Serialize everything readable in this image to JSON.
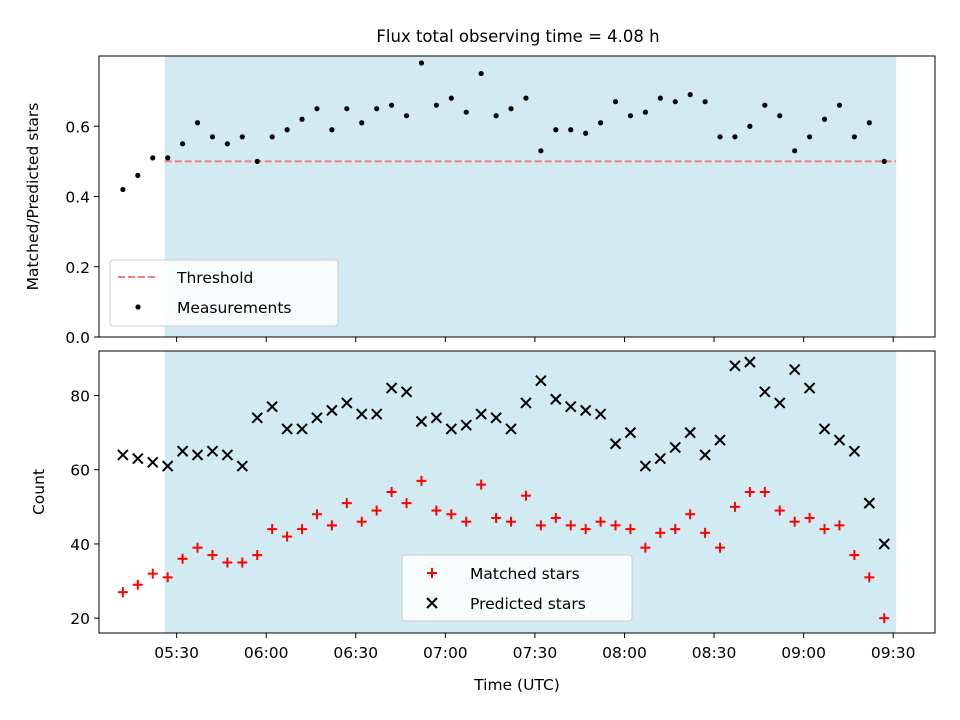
{
  "chart_data": [
    {
      "type": "scatter",
      "title": "Flux total observing time = 4.08 h",
      "xlabel": "",
      "ylabel": "Matched/Predicted stars",
      "ylim": [
        0,
        0.8
      ],
      "yticks": [
        0.0,
        0.2,
        0.4,
        0.6
      ],
      "ytick_labels": [
        "0.0",
        "0.2",
        "0.4",
        "0.6"
      ],
      "xlim_minutes_utc": [
        304,
        584
      ],
      "shaded_span_minutes_utc": [
        326,
        571
      ],
      "shade_color": "#add8e6",
      "threshold": {
        "name": "Threshold",
        "value": 0.5,
        "x_range_minutes_utc": [
          326,
          571
        ],
        "color": "#f08080",
        "style": "dashed"
      },
      "series": [
        {
          "name": "Measurements",
          "color": "#000000",
          "marker": "dot",
          "x": [
            "05:12",
            "05:17",
            "05:22",
            "05:27",
            "05:32",
            "05:37",
            "05:42",
            "05:47",
            "05:52",
            "05:57",
            "06:02",
            "06:07",
            "06:12",
            "06:17",
            "06:22",
            "06:27",
            "06:32",
            "06:37",
            "06:42",
            "06:47",
            "06:52",
            "06:57",
            "07:02",
            "07:07",
            "07:12",
            "07:17",
            "07:22",
            "07:27",
            "07:32",
            "07:37",
            "07:42",
            "07:47",
            "07:52",
            "07:57",
            "08:02",
            "08:07",
            "08:12",
            "08:17",
            "08:22",
            "08:27",
            "08:32",
            "08:37",
            "08:42",
            "08:47",
            "08:52",
            "08:57",
            "09:02",
            "09:07",
            "09:12",
            "09:17",
            "09:22",
            "09:27"
          ],
          "y": [
            0.42,
            0.46,
            0.51,
            0.51,
            0.55,
            0.61,
            0.57,
            0.55,
            0.57,
            0.5,
            0.57,
            0.59,
            0.62,
            0.65,
            0.59,
            0.65,
            0.61,
            0.65,
            0.66,
            0.63,
            0.78,
            0.66,
            0.68,
            0.64,
            0.75,
            0.63,
            0.65,
            0.68,
            0.53,
            0.59,
            0.59,
            0.58,
            0.61,
            0.67,
            0.63,
            0.64,
            0.68,
            0.67,
            0.69,
            0.67,
            0.57,
            0.57,
            0.6,
            0.66,
            0.63,
            0.53,
            0.57,
            0.62,
            0.66,
            0.57,
            0.61,
            0.5
          ]
        }
      ],
      "legend": {
        "position": "lower-left",
        "entries": [
          "Threshold",
          "Measurements"
        ]
      }
    },
    {
      "type": "scatter",
      "title": "",
      "xlabel": "Time (UTC)",
      "ylabel": "Count",
      "ylim": [
        16,
        92
      ],
      "yticks": [
        20,
        40,
        60,
        80
      ],
      "ytick_labels": [
        "20",
        "40",
        "60",
        "80"
      ],
      "xlim_minutes_utc": [
        304,
        584
      ],
      "xticks_minutes_utc": [
        330,
        360,
        390,
        420,
        450,
        480,
        510,
        540,
        570
      ],
      "xtick_labels": [
        "05:30",
        "06:00",
        "06:30",
        "07:00",
        "07:30",
        "08:00",
        "08:30",
        "09:00",
        "09:30"
      ],
      "shaded_span_minutes_utc": [
        326,
        571
      ],
      "shade_color": "#add8e6",
      "series": [
        {
          "name": "Matched stars",
          "color": "#ff0000",
          "marker": "plus",
          "x": [
            "05:12",
            "05:17",
            "05:22",
            "05:27",
            "05:32",
            "05:37",
            "05:42",
            "05:47",
            "05:52",
            "05:57",
            "06:02",
            "06:07",
            "06:12",
            "06:17",
            "06:22",
            "06:27",
            "06:32",
            "06:37",
            "06:42",
            "06:47",
            "06:52",
            "06:57",
            "07:02",
            "07:07",
            "07:12",
            "07:17",
            "07:22",
            "07:27",
            "07:32",
            "07:37",
            "07:42",
            "07:47",
            "07:52",
            "07:57",
            "08:02",
            "08:07",
            "08:12",
            "08:17",
            "08:22",
            "08:27",
            "08:32",
            "08:37",
            "08:42",
            "08:47",
            "08:52",
            "08:57",
            "09:02",
            "09:07",
            "09:12",
            "09:17",
            "09:22",
            "09:27"
          ],
          "y": [
            27,
            29,
            32,
            31,
            36,
            39,
            37,
            35,
            35,
            37,
            44,
            42,
            44,
            48,
            45,
            51,
            46,
            49,
            54,
            51,
            57,
            49,
            48,
            46,
            56,
            47,
            46,
            53,
            45,
            47,
            45,
            44,
            46,
            45,
            44,
            39,
            43,
            44,
            48,
            43,
            39,
            50,
            54,
            54,
            49,
            46,
            47,
            44,
            45,
            37,
            31,
            20
          ]
        },
        {
          "name": "Predicted stars",
          "color": "#000000",
          "marker": "x",
          "x": [
            "05:12",
            "05:17",
            "05:22",
            "05:27",
            "05:32",
            "05:37",
            "05:42",
            "05:47",
            "05:52",
            "05:57",
            "06:02",
            "06:07",
            "06:12",
            "06:17",
            "06:22",
            "06:27",
            "06:32",
            "06:37",
            "06:42",
            "06:47",
            "06:52",
            "06:57",
            "07:02",
            "07:07",
            "07:12",
            "07:17",
            "07:22",
            "07:27",
            "07:32",
            "07:37",
            "07:42",
            "07:47",
            "07:52",
            "07:57",
            "08:02",
            "08:07",
            "08:12",
            "08:17",
            "08:22",
            "08:27",
            "08:32",
            "08:37",
            "08:42",
            "08:47",
            "08:52",
            "08:57",
            "09:02",
            "09:07",
            "09:12",
            "09:17",
            "09:22",
            "09:27"
          ],
          "y": [
            64,
            63,
            62,
            61,
            65,
            64,
            65,
            64,
            61,
            74,
            77,
            71,
            71,
            74,
            76,
            78,
            75,
            75,
            82,
            81,
            73,
            74,
            71,
            72,
            75,
            74,
            71,
            78,
            84,
            79,
            77,
            76,
            75,
            67,
            70,
            61,
            63,
            66,
            70,
            64,
            68,
            88,
            89,
            81,
            78,
            87,
            82,
            71,
            68,
            65,
            51,
            40
          ]
        }
      ],
      "legend": {
        "position": "lower-center",
        "entries": [
          "Matched stars",
          "Predicted stars"
        ]
      }
    }
  ]
}
